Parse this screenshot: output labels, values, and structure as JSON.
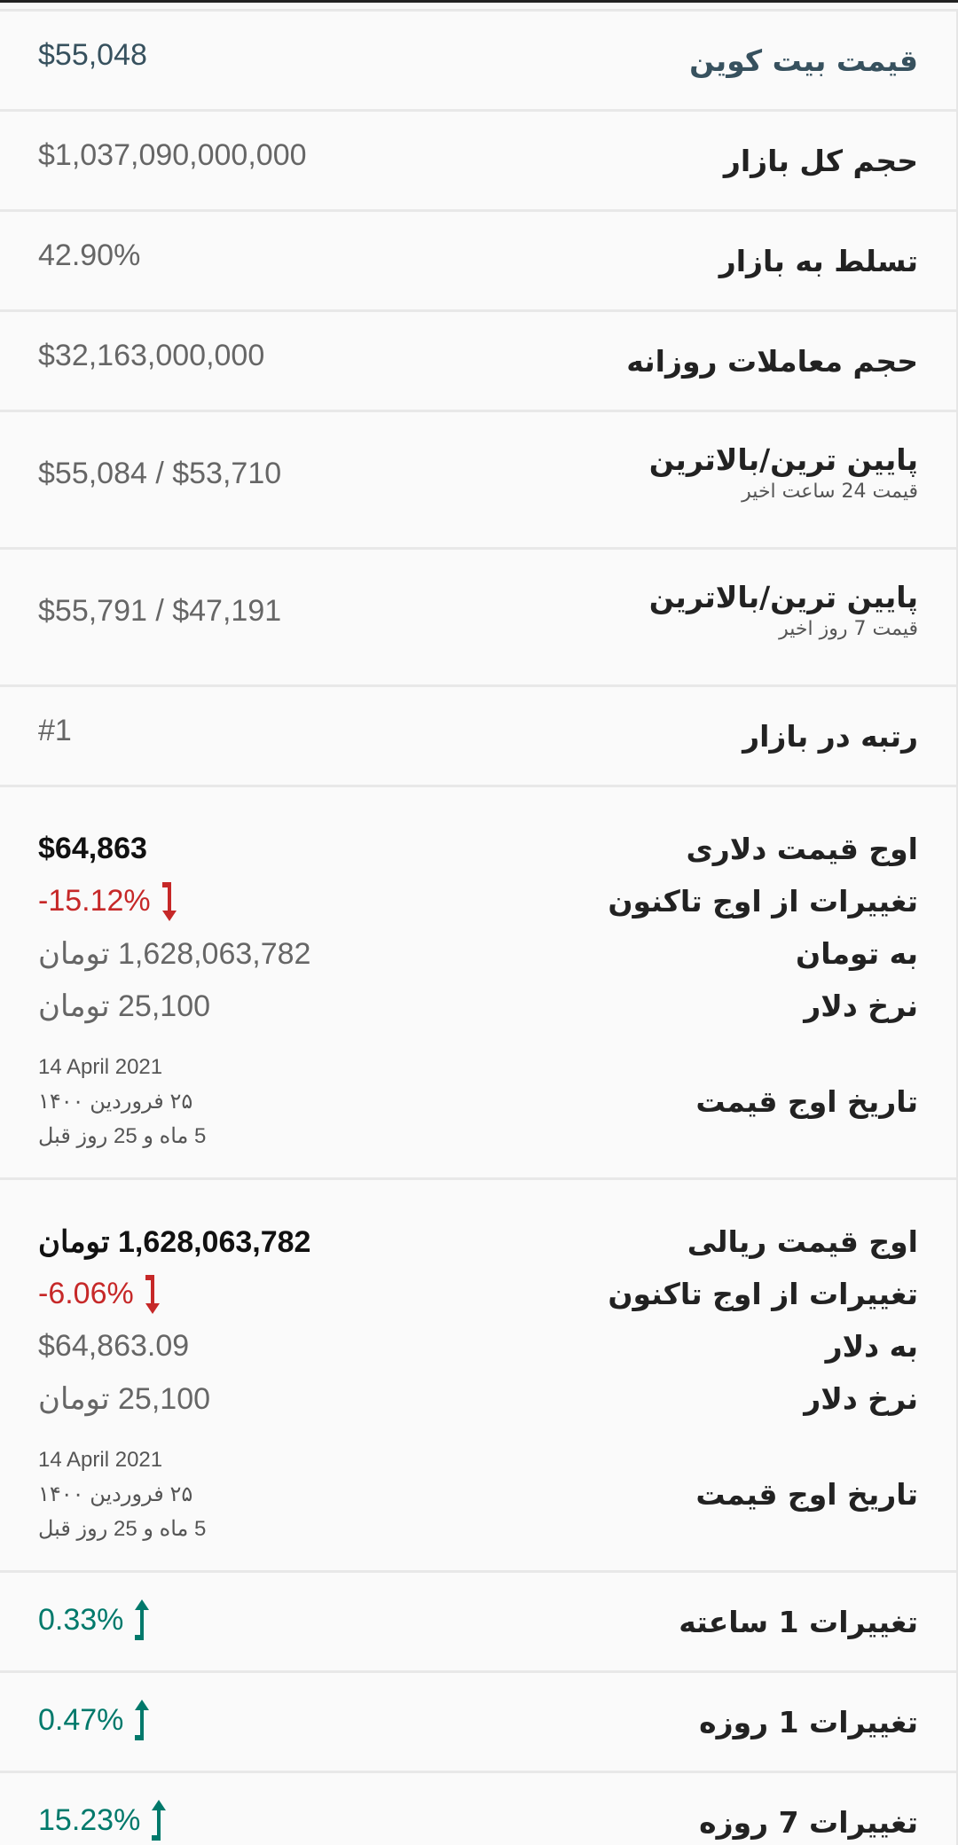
{
  "rows": [
    {
      "label": "قیمت بیت کوین",
      "value": "$55,048"
    },
    {
      "label": "حجم کل بازار",
      "value": "$1,037,090,000,000"
    },
    {
      "label": "تسلط به بازار",
      "value": "42.90%"
    },
    {
      "label": "حجم معاملات روزانه",
      "value": "$32,163,000,000"
    },
    {
      "label": "پایین ترین/بالاترین",
      "sub": "قیمت 24 ساعت اخیر",
      "value": "$55,084 / $53,710"
    },
    {
      "label": "پایین ترین/بالاترین",
      "sub": "قیمت 7 روز اخیر",
      "value": "$55,791 / $47,191"
    },
    {
      "label": "رتبه در بازار",
      "value": "#1"
    }
  ],
  "ath_usd": {
    "peak_label": "اوج قیمت دلاری",
    "peak_value": "$64,863",
    "change_label": "تغییرات از اوج تاکنون",
    "change_value": "-15.12%",
    "conv_label": "به تومان",
    "conv_value": "1,628,063,782 تومان",
    "rate_label": "نرخ دلار",
    "rate_value": "25,100 تومان",
    "date_label": "تاریخ اوج قیمت",
    "date_en": "14 April 2021",
    "date_fa": "۲۵ فروردین ۱۴۰۰",
    "date_ago": "5 ماه و 25 روز قبل"
  },
  "ath_irr": {
    "peak_label": "اوج قیمت ریالی",
    "peak_value": "1,628,063,782 تومان",
    "change_label": "تغییرات از اوج تاکنون",
    "change_value": "-6.06%",
    "conv_label": "به دلار",
    "conv_value": "$64,863.09",
    "rate_label": "نرخ دلار",
    "rate_value": "25,100 تومان",
    "date_label": "تاریخ اوج قیمت",
    "date_en": "14 April 2021",
    "date_fa": "۲۵ فروردین ۱۴۰۰",
    "date_ago": "5 ماه و 25 روز قبل"
  },
  "changes": [
    {
      "label": "تغییرات 1 ساعته",
      "value": "0.33%",
      "direction": "up"
    },
    {
      "label": "تغییرات 1 روزه",
      "value": "0.47%",
      "direction": "up"
    },
    {
      "label": "تغییرات 7 روزه",
      "value": "15.23%",
      "direction": "up"
    }
  ],
  "colors": {
    "down": "#c62828",
    "up": "#00796b",
    "title": "#37515e"
  }
}
